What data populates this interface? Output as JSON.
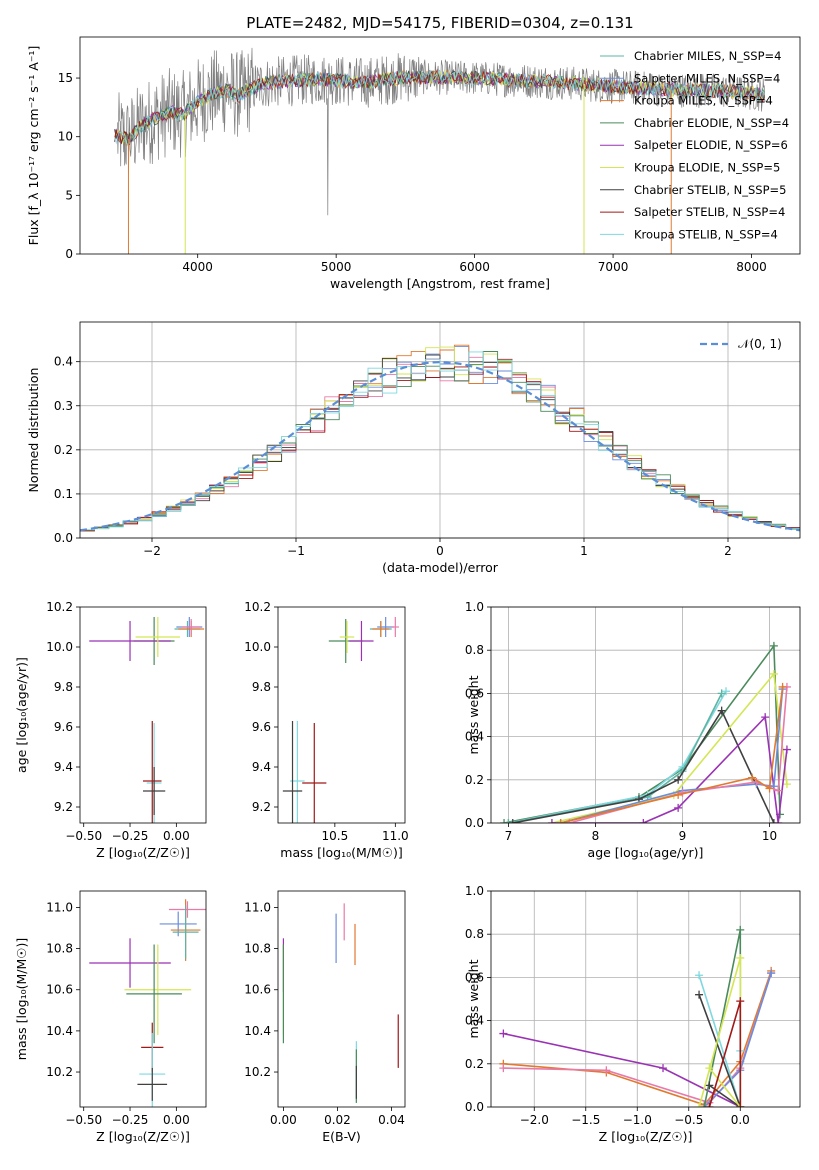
{
  "figure_title": "PLATE=2482, MJD=54175, FIBERID=0304, z=0.131",
  "colors": {
    "chabrier_miles": "#5fb4a3",
    "salpeter_miles": "#6b8ddc",
    "kroupa_miles": "#e07a30",
    "chabrier_elodie": "#4a8a5c",
    "salpeter_elodie": "#9a32b4",
    "kroupa_elodie": "#d4e655",
    "chabrier_stelib": "#404040",
    "salpeter_stelib": "#a01818",
    "kroupa_stelib": "#7fd8e0",
    "gaussian": "#5b8ed6",
    "hist_pink": "#e87aa8"
  },
  "chart_data": [
    {
      "id": "spectrum",
      "type": "line",
      "xlabel": "wavelength [Angstrom, rest frame]",
      "ylabel": "Flux [f_λ 10⁻¹⁷ erg cm⁻² s⁻¹ A⁻¹]",
      "xlim": [
        3150,
        8350
      ],
      "ylim": [
        0,
        18.5
      ],
      "xticks": [
        4000,
        5000,
        6000,
        7000,
        8000
      ],
      "yticks": [
        0,
        5,
        10,
        15
      ],
      "legend_position": "upper-right",
      "continuum": [
        [
          3400,
          10.1
        ],
        [
          3500,
          9.8
        ],
        [
          3600,
          11.0
        ],
        [
          3700,
          11.6
        ],
        [
          3800,
          12.1
        ],
        [
          3900,
          11.9
        ],
        [
          4000,
          13.0
        ],
        [
          4100,
          13.6
        ],
        [
          4200,
          14.0
        ],
        [
          4300,
          13.5
        ],
        [
          4400,
          14.2
        ],
        [
          4500,
          14.6
        ],
        [
          4700,
          14.8
        ],
        [
          4900,
          14.9
        ],
        [
          5200,
          14.6
        ],
        [
          5500,
          15.1
        ],
        [
          6000,
          15.0
        ],
        [
          6500,
          14.7
        ],
        [
          7000,
          14.3
        ],
        [
          7400,
          14.0
        ],
        [
          7800,
          13.9
        ],
        [
          8100,
          13.6
        ]
      ],
      "series": [
        {
          "name": "Chabrier MILES, N_SSP=4",
          "color_key": "chabrier_miles"
        },
        {
          "name": "Salpeter MILES, N_SSP=4",
          "color_key": "salpeter_miles"
        },
        {
          "name": "Kroupa MILES, N_SSP=4",
          "color_key": "kroupa_miles"
        },
        {
          "name": "Chabrier ELODIE, N_SSP=4",
          "color_key": "chabrier_elodie"
        },
        {
          "name": "Salpeter ELODIE, N_SSP=6",
          "color_key": "salpeter_elodie"
        },
        {
          "name": "Kroupa ELODIE, N_SSP=5",
          "color_key": "kroupa_elodie"
        },
        {
          "name": "Chabrier STELIB, N_SSP=5",
          "color_key": "chabrier_stelib"
        },
        {
          "name": "Salpeter STELIB, N_SSP=4",
          "color_key": "salpeter_stelib"
        },
        {
          "name": "Kroupa STELIB, N_SSP=4",
          "color_key": "kroupa_stelib"
        }
      ]
    },
    {
      "id": "residuals",
      "type": "bar",
      "xlabel": "(data-model)/error",
      "ylabel": "Normed distribution",
      "xlim": [
        -2.5,
        2.5
      ],
      "ylim": [
        0,
        0.49
      ],
      "xticks": [
        -2,
        -1,
        0,
        1,
        2
      ],
      "yticks": [
        0.0,
        0.1,
        0.2,
        0.3,
        0.4
      ],
      "grid": true,
      "legend_position": "upper-right",
      "legend": "𝒩(0, 1)",
      "bin_width": 0.1
    },
    {
      "id": "age_vs_z",
      "type": "scatter",
      "xlabel": "Z [log₁₀(Z/Z☉)]",
      "ylabel": "age  [log₁₀(age/yr)]",
      "xlim": [
        -0.52,
        0.16
      ],
      "ylim": [
        9.12,
        10.2
      ],
      "xticks": [
        -0.5,
        -0.25,
        0.0
      ],
      "xticklabels": [
        "−0.50",
        "−0.25",
        "0.00"
      ],
      "yticks": [
        9.2,
        9.4,
        9.6,
        9.8,
        10.0,
        10.2
      ],
      "points": [
        {
          "x": -0.12,
          "y": 10.03,
          "xerr": 0.11,
          "yerr": 0.12,
          "color_key": "chabrier_elodie"
        },
        {
          "x": -0.25,
          "y": 10.03,
          "xerr": 0.22,
          "yerr": 0.1,
          "color_key": "salpeter_elodie"
        },
        {
          "x": -0.1,
          "y": 10.05,
          "xerr": 0.12,
          "yerr": 0.1,
          "color_key": "kroupa_elodie"
        },
        {
          "x": 0.06,
          "y": 10.09,
          "xerr": 0.07,
          "yerr": 0.04,
          "color_key": "chabrier_miles"
        },
        {
          "x": 0.07,
          "y": 10.1,
          "xerr": 0.07,
          "yerr": 0.05,
          "color_key": "salpeter_miles"
        },
        {
          "x": 0.08,
          "y": 10.09,
          "xerr": 0.07,
          "yerr": 0.04,
          "color_key": "kroupa_miles"
        },
        {
          "x": 0.08,
          "y": 10.1,
          "xerr": 0.05,
          "yerr": 0.04,
          "color_key": "hist_pink"
        },
        {
          "x": -0.12,
          "y": 9.32,
          "xerr": 0.04,
          "yerr": 0.3,
          "color_key": "kroupa_stelib"
        },
        {
          "x": -0.13,
          "y": 9.33,
          "xerr": 0.05,
          "yerr": 0.3,
          "color_key": "salpeter_stelib"
        },
        {
          "x": -0.12,
          "y": 9.28,
          "xerr": 0.06,
          "yerr": 0.12,
          "color_key": "chabrier_stelib"
        }
      ]
    },
    {
      "id": "age_vs_mass",
      "type": "scatter",
      "xlabel": "mass [log₁₀(M/M☉)]",
      "ylabel": "",
      "xlim": [
        10.03,
        11.08
      ],
      "ylim": [
        9.12,
        10.2
      ],
      "xticks": [
        10.5,
        11.0
      ],
      "xticklabels": [
        "10.5",
        "11.0"
      ],
      "yticks": [
        9.2,
        9.4,
        9.6,
        9.8,
        10.0,
        10.2
      ],
      "points": [
        {
          "x": 10.59,
          "y": 10.03,
          "xerr": 0.14,
          "yerr": 0.11,
          "color_key": "chabrier_elodie"
        },
        {
          "x": 10.72,
          "y": 10.03,
          "xerr": 0.1,
          "yerr": 0.1,
          "color_key": "salpeter_elodie"
        },
        {
          "x": 10.6,
          "y": 10.05,
          "xerr": 0.06,
          "yerr": 0.08,
          "color_key": "kroupa_elodie"
        },
        {
          "x": 10.88,
          "y": 10.09,
          "xerr": 0.09,
          "yerr": 0.04,
          "color_key": "chabrier_miles"
        },
        {
          "x": 10.92,
          "y": 10.1,
          "xerr": 0.07,
          "yerr": 0.05,
          "color_key": "salpeter_miles"
        },
        {
          "x": 10.88,
          "y": 10.09,
          "xerr": 0.07,
          "yerr": 0.04,
          "color_key": "kroupa_miles"
        },
        {
          "x": 11.0,
          "y": 10.1,
          "xerr": 0.03,
          "yerr": 0.05,
          "color_key": "hist_pink"
        },
        {
          "x": 10.19,
          "y": 9.33,
          "xerr": 0.06,
          "yerr": 0.3,
          "color_key": "kroupa_stelib"
        },
        {
          "x": 10.33,
          "y": 9.32,
          "xerr": 0.1,
          "yerr": 0.3,
          "color_key": "salpeter_stelib"
        },
        {
          "x": 10.15,
          "y": 9.28,
          "xerr": 0.08,
          "yerr": 0.35,
          "color_key": "chabrier_stelib"
        }
      ]
    },
    {
      "id": "mass_weight_vs_age",
      "type": "line",
      "xlabel": "age  [log₁₀(age/yr)]",
      "ylabel": "mass weight",
      "xlim": [
        6.8,
        10.35
      ],
      "ylim": [
        0,
        1
      ],
      "xticks": [
        7,
        8,
        9,
        10
      ],
      "yticks": [
        0.0,
        0.2,
        0.4,
        0.6,
        0.8,
        1.0
      ],
      "grid": true,
      "series": [
        {
          "color_key": "chabrier_elodie",
          "x": [
            6.95,
            8.5,
            9.0,
            10.05,
            10.12
          ],
          "y": [
            0.0,
            0.12,
            0.25,
            0.82,
            0.04
          ]
        },
        {
          "color_key": "kroupa_stelib",
          "x": [
            7.0,
            8.6,
            9.0,
            9.5
          ],
          "y": [
            0.0,
            0.13,
            0.26,
            0.61
          ]
        },
        {
          "color_key": "chabrier_miles",
          "x": [
            7.0,
            8.6,
            9.0,
            9.45
          ],
          "y": [
            0.0,
            0.12,
            0.24,
            0.6
          ]
        },
        {
          "color_key": "chabrier_stelib",
          "x": [
            7.05,
            8.5,
            8.95,
            9.45,
            10.05
          ],
          "y": [
            0.0,
            0.11,
            0.2,
            0.52,
            0.0
          ]
        },
        {
          "color_key": "kroupa_elodie",
          "x": [
            7.5,
            8.9,
            10.05,
            10.2
          ],
          "y": [
            0.0,
            0.13,
            0.69,
            0.18
          ]
        },
        {
          "color_key": "salpeter_elodie",
          "x": [
            7.5,
            8.55,
            8.95,
            9.95,
            10.1,
            10.2
          ],
          "y": [
            0.0,
            0.0,
            0.07,
            0.49,
            0.0,
            0.34
          ]
        },
        {
          "color_key": "salpeter_miles",
          "x": [
            7.6,
            9.0,
            9.85,
            10.05,
            10.15
          ],
          "y": [
            0.0,
            0.15,
            0.18,
            0.17,
            0.62
          ]
        },
        {
          "color_key": "hist_pink",
          "x": [
            7.7,
            9.0,
            9.85,
            10.1,
            10.2
          ],
          "y": [
            0.0,
            0.14,
            0.19,
            0.15,
            0.63
          ]
        },
        {
          "color_key": "kroupa_miles",
          "x": [
            7.6,
            8.95,
            9.8,
            10.0,
            10.15
          ],
          "y": [
            0.0,
            0.13,
            0.21,
            0.16,
            0.63
          ]
        }
      ]
    },
    {
      "id": "mass_vs_z",
      "type": "scatter",
      "xlabel": "Z [log₁₀(Z/Z☉)]",
      "ylabel": "mass [log₁₀(M/M☉)]",
      "xlim": [
        -0.52,
        0.16
      ],
      "ylim": [
        10.03,
        11.08
      ],
      "xticks": [
        -0.5,
        -0.25,
        0.0
      ],
      "xticklabels": [
        "−0.50",
        "−0.25",
        "0.00"
      ],
      "yticks": [
        10.2,
        10.4,
        10.6,
        10.8,
        11.0
      ],
      "points": [
        {
          "x": 0.06,
          "y": 10.99,
          "xerr": 0.1,
          "yerr": 0.04,
          "color_key": "hist_pink"
        },
        {
          "x": 0.01,
          "y": 10.92,
          "xerr": 0.1,
          "yerr": 0.06,
          "color_key": "salpeter_miles"
        },
        {
          "x": 0.05,
          "y": 10.89,
          "xerr": 0.08,
          "yerr": 0.15,
          "color_key": "kroupa_miles"
        },
        {
          "x": 0.05,
          "y": 10.88,
          "xerr": 0.07,
          "yerr": 0.13,
          "color_key": "chabrier_miles"
        },
        {
          "x": -0.25,
          "y": 10.73,
          "xerr": 0.22,
          "yerr": 0.12,
          "color_key": "salpeter_elodie"
        },
        {
          "x": -0.1,
          "y": 10.6,
          "xerr": 0.18,
          "yerr": 0.22,
          "color_key": "kroupa_elodie"
        },
        {
          "x": -0.12,
          "y": 10.58,
          "xerr": 0.15,
          "yerr": 0.24,
          "color_key": "chabrier_elodie"
        },
        {
          "x": -0.13,
          "y": 10.32,
          "xerr": 0.06,
          "yerr": 0.12,
          "color_key": "salpeter_stelib"
        },
        {
          "x": -0.13,
          "y": 10.19,
          "xerr": 0.07,
          "yerr": 0.2,
          "color_key": "kroupa_stelib"
        },
        {
          "x": -0.13,
          "y": 10.14,
          "xerr": 0.08,
          "yerr": 0.08,
          "color_key": "chabrier_stelib"
        }
      ]
    },
    {
      "id": "mass_vs_ebv",
      "type": "scatter",
      "xlabel": "E(B-V)",
      "ylabel": "",
      "xlim": [
        -0.002,
        0.045
      ],
      "ylim": [
        10.03,
        11.08
      ],
      "xticks": [
        0.0,
        0.02,
        0.04
      ],
      "xticklabels": [
        "0.00",
        "0.02",
        "0.04"
      ],
      "yticks": [
        10.2,
        10.4,
        10.6,
        10.8,
        11.0
      ],
      "points": [
        {
          "x": 0.0,
          "y": 10.72,
          "xerr": 0,
          "yerr": 0.13,
          "color_key": "salpeter_elodie"
        },
        {
          "x": 0.0,
          "y": 10.6,
          "xerr": 0,
          "yerr": 0.22,
          "color_key": "kroupa_elodie"
        },
        {
          "x": 0.0,
          "y": 10.58,
          "xerr": 0,
          "yerr": 0.24,
          "color_key": "chabrier_elodie"
        },
        {
          "x": 0.0195,
          "y": 10.85,
          "xerr": 0,
          "yerr": 0.12,
          "color_key": "salpeter_miles"
        },
        {
          "x": 0.0225,
          "y": 10.93,
          "xerr": 0,
          "yerr": 0.09,
          "color_key": "hist_pink"
        },
        {
          "x": 0.0265,
          "y": 10.82,
          "xerr": 0,
          "yerr": 0.1,
          "color_key": "kroupa_miles"
        },
        {
          "x": 0.027,
          "y": 10.2,
          "xerr": 0,
          "yerr": 0.15,
          "color_key": "kroupa_stelib"
        },
        {
          "x": 0.027,
          "y": 10.18,
          "xerr": 0,
          "yerr": 0.13,
          "color_key": "chabrier_elodie"
        },
        {
          "x": 0.027,
          "y": 10.15,
          "xerr": 0,
          "yerr": 0.08,
          "color_key": "chabrier_stelib"
        },
        {
          "x": 0.0425,
          "y": 10.35,
          "xerr": 0,
          "yerr": 0.13,
          "color_key": "salpeter_stelib"
        }
      ]
    },
    {
      "id": "mass_weight_vs_z",
      "type": "line",
      "xlabel": "Z [log₁₀(Z/Z☉)]",
      "ylabel": "mass weight",
      "xlim": [
        -2.42,
        0.58
      ],
      "ylim": [
        0,
        1
      ],
      "xticks": [
        -2.0,
        -1.5,
        -1.0,
        -0.5,
        0.0
      ],
      "xticklabels": [
        "−2.0",
        "−1.5",
        "−1.0",
        "−0.5",
        "0.0"
      ],
      "yticks": [
        0.0,
        0.2,
        0.4,
        0.6,
        0.8,
        1.0
      ],
      "grid": true,
      "series": [
        {
          "color_key": "salpeter_elodie",
          "x": [
            -2.3,
            -0.75,
            -0.0
          ],
          "y": [
            0.34,
            0.18,
            0.0
          ]
        },
        {
          "color_key": "kroupa_miles",
          "x": [
            -2.3,
            -1.3,
            -0.35,
            0.0,
            0.3
          ],
          "y": [
            0.2,
            0.16,
            0.01,
            0.21,
            0.63
          ]
        },
        {
          "color_key": "hist_pink",
          "x": [
            -2.3,
            -1.3,
            -0.3,
            0.0,
            0.3
          ],
          "y": [
            0.18,
            0.17,
            0.02,
            0.18,
            0.62
          ]
        },
        {
          "color_key": "salpeter_miles",
          "x": [
            -0.35,
            0.0,
            0.3
          ],
          "y": [
            0.0,
            0.17,
            0.62
          ]
        },
        {
          "color_key": "chabrier_elodie",
          "x": [
            -0.35,
            0.0,
            0.0
          ],
          "y": [
            0.0,
            0.82,
            0.0
          ]
        },
        {
          "color_key": "kroupa_stelib",
          "x": [
            -0.4,
            0.0,
            0.0
          ],
          "y": [
            0.61,
            0.0,
            0.26
          ]
        },
        {
          "color_key": "chabrier_stelib",
          "x": [
            -0.4,
            0.0,
            -0.3
          ],
          "y": [
            0.52,
            0.0,
            0.1
          ]
        },
        {
          "color_key": "kroupa_elodie",
          "x": [
            -0.4,
            0.0,
            0.0,
            -0.3
          ],
          "y": [
            0.0,
            0.69,
            0.0,
            0.18
          ]
        },
        {
          "color_key": "salpeter_stelib",
          "x": [
            -0.3,
            0.0,
            0.0
          ],
          "y": [
            0.0,
            0.49,
            0.0
          ]
        }
      ]
    }
  ]
}
